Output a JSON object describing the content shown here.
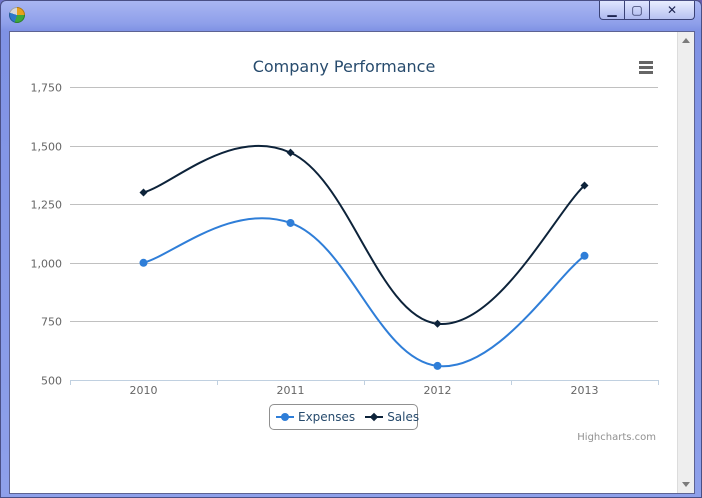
{
  "window": {
    "icon": "pie-chart-icon",
    "controls": {
      "minimize": "▁",
      "maximize": "▢",
      "close": "✕"
    }
  },
  "colors": {
    "expenses": "#2f7ed8",
    "sales": "#0d233a",
    "grid": "#c0c0c0",
    "axis_labels": "#666666",
    "title": "#274b6d"
  },
  "credits": "Highcharts.com",
  "chart_data": {
    "type": "line",
    "title": "Company Performance",
    "categories": [
      "2010",
      "2011",
      "2012",
      "2013"
    ],
    "series": [
      {
        "name": "Expenses",
        "values": [
          1000,
          1170,
          560,
          1030
        ],
        "marker": "circle"
      },
      {
        "name": "Sales",
        "values": [
          1300,
          1470,
          740,
          1330
        ],
        "marker": "diamond"
      }
    ],
    "ylim": [
      500,
      1750
    ],
    "yticks": [
      500,
      750,
      1000,
      1250,
      1500,
      1750
    ],
    "ytick_labels": [
      "500",
      "750",
      "1,000",
      "1,250",
      "1,500",
      "1,750"
    ],
    "xlabel": "",
    "ylabel": "",
    "grid": true,
    "smooth": true,
    "legend_position": "bottom-center"
  }
}
